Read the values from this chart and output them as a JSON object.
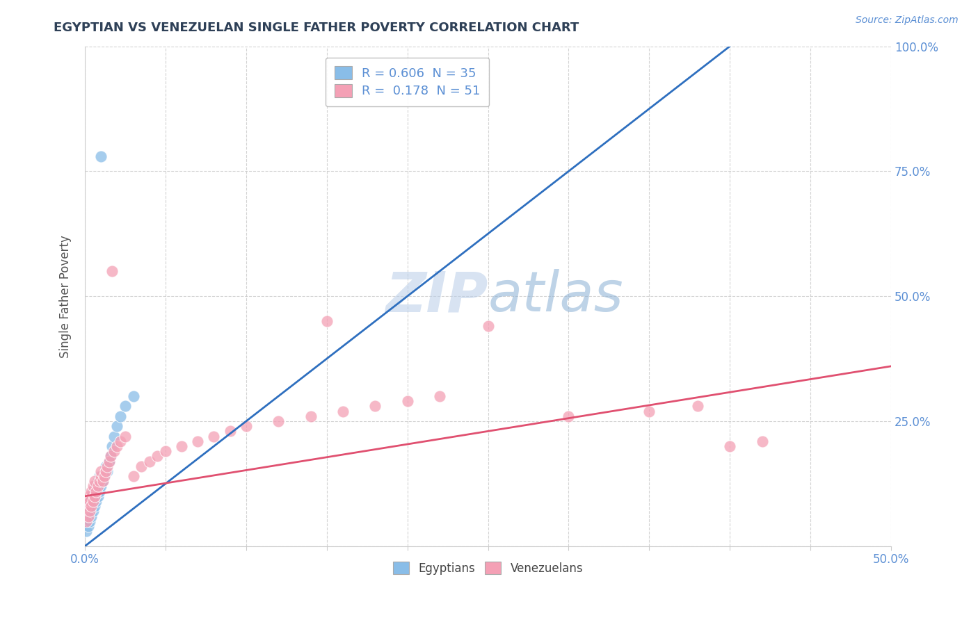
{
  "title": "EGYPTIAN VS VENEZUELAN SINGLE FATHER POVERTY CORRELATION CHART",
  "source_text": "Source: ZipAtlas.com",
  "ylabel": "Single Father Poverty",
  "xlim": [
    0.0,
    0.5
  ],
  "ylim": [
    0.0,
    1.0
  ],
  "xticks": [
    0.0,
    0.05,
    0.1,
    0.15,
    0.2,
    0.25,
    0.3,
    0.35,
    0.4,
    0.45,
    0.5
  ],
  "xtick_labels": [
    "0.0%",
    "",
    "",
    "",
    "",
    "",
    "",
    "",
    "",
    "",
    "50.0%"
  ],
  "yticks": [
    0.0,
    0.25,
    0.5,
    0.75,
    1.0
  ],
  "ytick_labels_right": [
    "",
    "25.0%",
    "50.0%",
    "75.0%",
    "100.0%"
  ],
  "egyptian_color": "#89BDE8",
  "venezuelan_color": "#F4A0B5",
  "egyptian_line_color": "#2E6FBF",
  "venezuelan_line_color": "#E05070",
  "R_egyptian": 0.606,
  "N_egyptian": 35,
  "R_venezuelan": 0.178,
  "N_venezuelan": 51,
  "watermark_zip": "ZIP",
  "watermark_atlas": "atlas",
  "background_color": "#FFFFFF",
  "grid_color": "#C8C8C8",
  "title_color": "#2E4057",
  "tick_color": "#5B8FD4",
  "ylabel_color": "#555555",
  "source_color": "#5B8FD4",
  "eg_line_x0": 0.0,
  "eg_line_y0": 0.0,
  "eg_line_x1": 0.4,
  "eg_line_y1": 1.0,
  "ve_line_x0": 0.0,
  "ve_line_y0": 0.1,
  "ve_line_x1": 0.5,
  "ve_line_y1": 0.36,
  "egyptians_x": [
    0.001,
    0.001,
    0.002,
    0.002,
    0.002,
    0.003,
    0.003,
    0.003,
    0.004,
    0.004,
    0.005,
    0.005,
    0.005,
    0.006,
    0.006,
    0.007,
    0.007,
    0.008,
    0.008,
    0.009,
    0.009,
    0.01,
    0.01,
    0.011,
    0.012,
    0.013,
    0.014,
    0.015,
    0.016,
    0.017,
    0.018,
    0.02,
    0.022,
    0.025,
    0.03
  ],
  "egyptians_y": [
    0.05,
    0.03,
    0.04,
    0.06,
    0.08,
    0.05,
    0.07,
    0.09,
    0.06,
    0.08,
    0.07,
    0.09,
    0.11,
    0.08,
    0.1,
    0.09,
    0.12,
    0.1,
    0.13,
    0.11,
    0.14,
    0.12,
    0.78,
    0.13,
    0.14,
    0.16,
    0.15,
    0.17,
    0.18,
    0.2,
    0.22,
    0.24,
    0.26,
    0.28,
    0.3
  ],
  "venezuelans_x": [
    0.001,
    0.001,
    0.002,
    0.002,
    0.003,
    0.003,
    0.004,
    0.004,
    0.005,
    0.005,
    0.006,
    0.006,
    0.007,
    0.008,
    0.009,
    0.01,
    0.01,
    0.011,
    0.012,
    0.013,
    0.014,
    0.015,
    0.016,
    0.017,
    0.018,
    0.02,
    0.022,
    0.025,
    0.03,
    0.035,
    0.04,
    0.045,
    0.05,
    0.06,
    0.07,
    0.08,
    0.09,
    0.1,
    0.12,
    0.14,
    0.16,
    0.18,
    0.2,
    0.22,
    0.25,
    0.3,
    0.35,
    0.38,
    0.4,
    0.42,
    0.15
  ],
  "venezuelans_y": [
    0.05,
    0.08,
    0.06,
    0.1,
    0.07,
    0.09,
    0.08,
    0.11,
    0.09,
    0.12,
    0.1,
    0.13,
    0.11,
    0.12,
    0.13,
    0.14,
    0.15,
    0.13,
    0.14,
    0.15,
    0.16,
    0.17,
    0.18,
    0.55,
    0.19,
    0.2,
    0.21,
    0.22,
    0.14,
    0.16,
    0.17,
    0.18,
    0.19,
    0.2,
    0.21,
    0.22,
    0.23,
    0.24,
    0.25,
    0.26,
    0.27,
    0.28,
    0.29,
    0.3,
    0.44,
    0.26,
    0.27,
    0.28,
    0.2,
    0.21,
    0.45
  ]
}
